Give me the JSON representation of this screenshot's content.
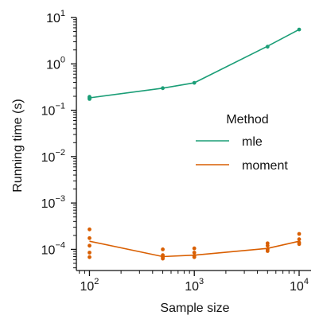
{
  "chart_data": {
    "type": "line",
    "xlabel": "Sample size",
    "ylabel": "Running time (s)",
    "xscale": "log",
    "yscale": "log",
    "xlim": [
      75,
      13000
    ],
    "ylim": [
      3.5e-05,
      10
    ],
    "grid": false,
    "legend": {
      "title": "Method",
      "placement": "center-right",
      "entries": [
        "mle",
        "moment"
      ]
    },
    "xticks": [
      {
        "value": 100,
        "base": "10",
        "exp": "2"
      },
      {
        "value": 1000,
        "base": "10",
        "exp": "3"
      },
      {
        "value": 10000,
        "base": "10",
        "exp": "4"
      }
    ],
    "yticks": [
      {
        "value": 0.0001,
        "base": "10",
        "exp": "−4"
      },
      {
        "value": 0.001,
        "base": "10",
        "exp": "−3"
      },
      {
        "value": 0.01,
        "base": "10",
        "exp": "−2"
      },
      {
        "value": 0.1,
        "base": "10",
        "exp": "−1"
      },
      {
        "value": 1,
        "base": "10",
        "exp": "0"
      },
      {
        "value": 10,
        "base": "10",
        "exp": "1"
      }
    ],
    "series": [
      {
        "name": "mle",
        "color": "#1b9e77",
        "line": [
          [
            100,
            0.185
          ],
          [
            500,
            0.3
          ],
          [
            1000,
            0.39
          ],
          [
            5000,
            2.4
          ],
          [
            10000,
            5.5
          ]
        ],
        "points": [
          [
            100,
            0.175
          ],
          [
            100,
            0.18
          ],
          [
            100,
            0.19
          ],
          [
            100,
            0.195
          ],
          [
            500,
            0.3
          ],
          [
            1000,
            0.39
          ],
          [
            5000,
            2.35
          ],
          [
            10000,
            5.5
          ]
        ]
      },
      {
        "name": "moment",
        "color": "#d95f02",
        "line": [
          [
            100,
            0.00015
          ],
          [
            500,
            7e-05
          ],
          [
            1000,
            7.5e-05
          ],
          [
            5000,
            0.000105
          ],
          [
            10000,
            0.00015
          ]
        ],
        "points": [
          [
            100,
            0.00027
          ],
          [
            100,
            0.000175
          ],
          [
            100,
            0.00012
          ],
          [
            100,
            8.5e-05
          ],
          [
            100,
            6.8e-05
          ],
          [
            500,
            0.0001
          ],
          [
            500,
            7.5e-05
          ],
          [
            500,
            6.8e-05
          ],
          [
            500,
            6.3e-05
          ],
          [
            1000,
            0.000105
          ],
          [
            1000,
            8.5e-05
          ],
          [
            1000,
            7.2e-05
          ],
          [
            1000,
            6.8e-05
          ],
          [
            5000,
            0.000135
          ],
          [
            5000,
            0.00012
          ],
          [
            5000,
            0.0001
          ],
          [
            5000,
            9.2e-05
          ],
          [
            10000,
            0.000215
          ],
          [
            10000,
            0.000165
          ],
          [
            10000,
            0.00014
          ],
          [
            10000,
            0.00013
          ]
        ]
      }
    ]
  }
}
